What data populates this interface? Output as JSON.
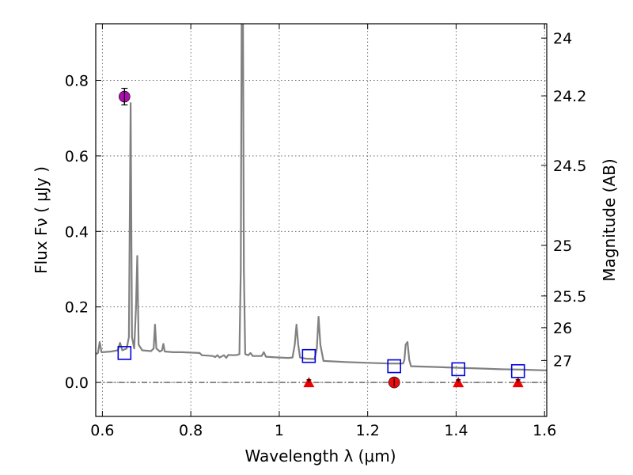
{
  "chart_data": {
    "type": "line",
    "title": "",
    "xlabel": "Wavelength  λ (μm)",
    "ylabel": "Flux  Fν  ( μJy )",
    "ylabel_right": "Magnitude (AB)",
    "xlim": [
      0.585,
      1.605
    ],
    "ylim": [
      -0.09,
      0.95
    ],
    "grid": true,
    "x_ticks": [
      {
        "value": 0.6,
        "label": "0.6"
      },
      {
        "value": 0.8,
        "label": "0.8"
      },
      {
        "value": 1.0,
        "label": "1"
      },
      {
        "value": 1.2,
        "label": "1.2"
      },
      {
        "value": 1.4,
        "label": "1.4"
      },
      {
        "value": 1.6,
        "label": "1.6"
      }
    ],
    "y_ticks": [
      {
        "value": 0.0,
        "label": "0.0"
      },
      {
        "value": 0.2,
        "label": "0.2"
      },
      {
        "value": 0.4,
        "label": "0.4"
      },
      {
        "value": 0.6,
        "label": "0.6"
      },
      {
        "value": 0.8,
        "label": "0.8"
      }
    ],
    "magnitude_ticks": [
      {
        "label": "24",
        "flux": 0.912
      },
      {
        "label": "24.2",
        "flux": 0.759
      },
      {
        "label": "24.5",
        "flux": 0.575
      },
      {
        "label": "25",
        "flux": 0.363
      },
      {
        "label": "25.5",
        "flux": 0.229
      },
      {
        "label": "26",
        "flux": 0.145
      },
      {
        "label": "27",
        "flux": 0.058
      }
    ],
    "zero_line": 0.0,
    "series": [
      {
        "kind": "model_spectrum",
        "color": "#808080",
        "points": [
          [
            0.585,
            0.075
          ],
          [
            0.59,
            0.078
          ],
          [
            0.594,
            0.107
          ],
          [
            0.598,
            0.08
          ],
          [
            0.6,
            0.08
          ],
          [
            0.62,
            0.082
          ],
          [
            0.635,
            0.085
          ],
          [
            0.64,
            0.105
          ],
          [
            0.645,
            0.085
          ],
          [
            0.655,
            0.09
          ],
          [
            0.66,
            0.12
          ],
          [
            0.664,
            0.74
          ],
          [
            0.667,
            0.12
          ],
          [
            0.672,
            0.09
          ],
          [
            0.676,
            0.2
          ],
          [
            0.679,
            0.335
          ],
          [
            0.682,
            0.1
          ],
          [
            0.69,
            0.085
          ],
          [
            0.71,
            0.083
          ],
          [
            0.716,
            0.09
          ],
          [
            0.719,
            0.153
          ],
          [
            0.722,
            0.09
          ],
          [
            0.73,
            0.082
          ],
          [
            0.735,
            0.085
          ],
          [
            0.738,
            0.102
          ],
          [
            0.741,
            0.082
          ],
          [
            0.76,
            0.08
          ],
          [
            0.78,
            0.08
          ],
          [
            0.8,
            0.079
          ],
          [
            0.82,
            0.078
          ],
          [
            0.825,
            0.072
          ],
          [
            0.85,
            0.07
          ],
          [
            0.855,
            0.067
          ],
          [
            0.86,
            0.072
          ],
          [
            0.865,
            0.066
          ],
          [
            0.875,
            0.072
          ],
          [
            0.88,
            0.065
          ],
          [
            0.885,
            0.073
          ],
          [
            0.895,
            0.072
          ],
          [
            0.905,
            0.073
          ],
          [
            0.91,
            0.075
          ],
          [
            0.913,
            0.3
          ],
          [
            0.915,
            0.95
          ],
          [
            0.918,
            0.95
          ],
          [
            0.92,
            0.3
          ],
          [
            0.923,
            0.075
          ],
          [
            0.93,
            0.072
          ],
          [
            0.935,
            0.078
          ],
          [
            0.94,
            0.07
          ],
          [
            0.96,
            0.07
          ],
          [
            0.965,
            0.08
          ],
          [
            0.97,
            0.068
          ],
          [
            1.0,
            0.066
          ],
          [
            1.02,
            0.065
          ],
          [
            1.03,
            0.066
          ],
          [
            1.035,
            0.1
          ],
          [
            1.039,
            0.153
          ],
          [
            1.043,
            0.1
          ],
          [
            1.047,
            0.066
          ],
          [
            1.06,
            0.063
          ],
          [
            1.08,
            0.062
          ],
          [
            1.085,
            0.09
          ],
          [
            1.089,
            0.174
          ],
          [
            1.093,
            0.1
          ],
          [
            1.1,
            0.057
          ],
          [
            1.15,
            0.054
          ],
          [
            1.2,
            0.052
          ],
          [
            1.25,
            0.05
          ],
          [
            1.28,
            0.05
          ],
          [
            1.283,
            0.06
          ],
          [
            1.286,
            0.1
          ],
          [
            1.29,
            0.107
          ],
          [
            1.294,
            0.06
          ],
          [
            1.298,
            0.043
          ],
          [
            1.35,
            0.041
          ],
          [
            1.4,
            0.039
          ],
          [
            1.45,
            0.037
          ],
          [
            1.5,
            0.035
          ],
          [
            1.55,
            0.034
          ],
          [
            1.6,
            0.032
          ],
          [
            1.605,
            0.032
          ]
        ]
      },
      {
        "kind": "model_photometry",
        "marker": "open-square",
        "color": "#0000dd",
        "points": [
          [
            0.65,
            0.078
          ],
          [
            1.067,
            0.07
          ],
          [
            1.26,
            0.043
          ],
          [
            1.405,
            0.035
          ],
          [
            1.54,
            0.03
          ]
        ]
      },
      {
        "kind": "detection",
        "marker": "filled-circle",
        "color": "#aa00aa",
        "points": [
          [
            0.65,
            0.757,
            0.022
          ]
        ]
      },
      {
        "kind": "observed_flux",
        "marker": "filled-circle",
        "color": "#ee0000",
        "points": [
          [
            1.26,
            0.0,
            0.01
          ]
        ]
      },
      {
        "kind": "upper_limit",
        "marker": "filled-triangle",
        "color": "#ee0000",
        "points": [
          [
            1.067,
            0.0,
            0.007
          ],
          [
            1.405,
            0.0,
            0.007
          ],
          [
            1.54,
            0.0,
            0.007
          ]
        ]
      }
    ]
  }
}
